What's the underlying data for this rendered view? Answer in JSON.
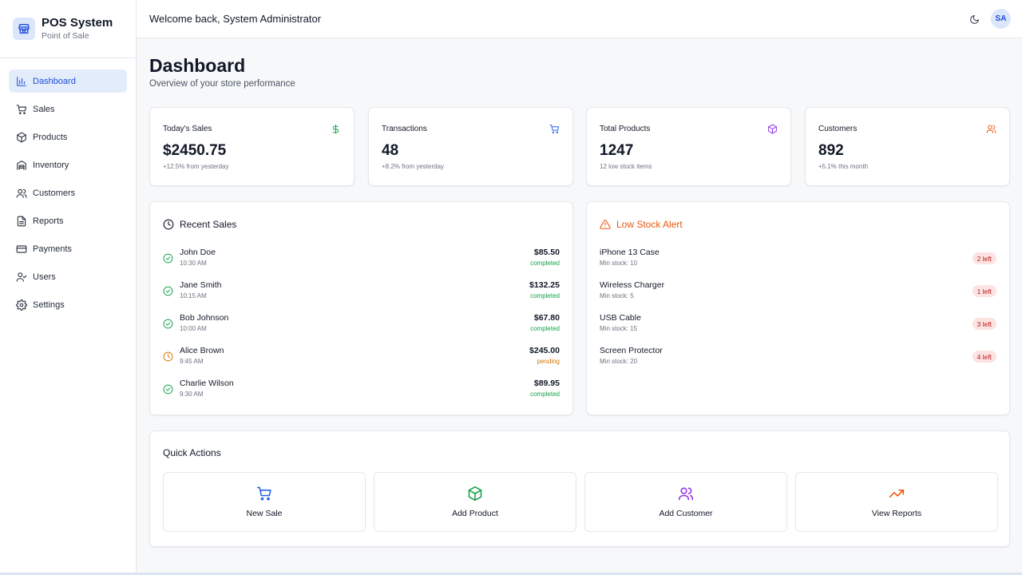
{
  "brand": {
    "title": "POS System",
    "subtitle": "Point of Sale"
  },
  "sidebar": {
    "items": [
      {
        "label": "Dashboard",
        "icon": "bar-chart-icon",
        "active": true
      },
      {
        "label": "Sales",
        "icon": "cart-icon"
      },
      {
        "label": "Products",
        "icon": "package-icon"
      },
      {
        "label": "Inventory",
        "icon": "warehouse-icon"
      },
      {
        "label": "Customers",
        "icon": "users-icon"
      },
      {
        "label": "Reports",
        "icon": "file-text-icon"
      },
      {
        "label": "Payments",
        "icon": "credit-card-icon"
      },
      {
        "label": "Users",
        "icon": "user-check-icon"
      },
      {
        "label": "Settings",
        "icon": "gear-icon"
      }
    ]
  },
  "header": {
    "welcome": "Welcome back, System Administrator",
    "avatar_initials": "SA"
  },
  "page": {
    "title": "Dashboard",
    "subtitle": "Overview of your store performance"
  },
  "stats": [
    {
      "label": "Today's Sales",
      "value": "$2450.75",
      "note": "+12.5% from yesterday",
      "icon": "dollar-icon",
      "color": "#16a34a"
    },
    {
      "label": "Transactions",
      "value": "48",
      "note": "+8.2% from yesterday",
      "icon": "cart-icon",
      "color": "#2563eb"
    },
    {
      "label": "Total Products",
      "value": "1247",
      "note": "12 low stock items",
      "icon": "package-icon",
      "color": "#9333ea"
    },
    {
      "label": "Customers",
      "value": "892",
      "note": "+5.1% this month",
      "icon": "users-icon",
      "color": "#ea580c"
    }
  ],
  "recent_sales": {
    "title": "Recent Sales",
    "rows": [
      {
        "name": "John Doe",
        "time": "10:30 AM",
        "amount": "$85.50",
        "status": "completed"
      },
      {
        "name": "Jane Smith",
        "time": "10:15 AM",
        "amount": "$132.25",
        "status": "completed"
      },
      {
        "name": "Bob Johnson",
        "time": "10:00 AM",
        "amount": "$67.80",
        "status": "completed"
      },
      {
        "name": "Alice Brown",
        "time": "9:45 AM",
        "amount": "$245.00",
        "status": "pending"
      },
      {
        "name": "Charlie Wilson",
        "time": "9:30 AM",
        "amount": "$89.95",
        "status": "completed"
      }
    ]
  },
  "low_stock": {
    "title": "Low Stock Alert",
    "rows": [
      {
        "name": "iPhone 13 Case",
        "min": "Min stock: 10",
        "badge": "2 left"
      },
      {
        "name": "Wireless Charger",
        "min": "Min stock: 5",
        "badge": "1 left"
      },
      {
        "name": "USB Cable",
        "min": "Min stock: 15",
        "badge": "3 left"
      },
      {
        "name": "Screen Protector",
        "min": "Min stock: 20",
        "badge": "4 left"
      }
    ]
  },
  "quick_actions": {
    "title": "Quick Actions",
    "items": [
      {
        "label": "New Sale",
        "icon": "cart-icon",
        "color": "#2563eb"
      },
      {
        "label": "Add Product",
        "icon": "package-icon",
        "color": "#16a34a"
      },
      {
        "label": "Add Customer",
        "icon": "users-icon",
        "color": "#9333ea"
      },
      {
        "label": "View Reports",
        "icon": "trending-up-icon",
        "color": "#ea580c"
      }
    ]
  },
  "colors": {
    "accent": "#1d4ed8",
    "completed": "#16a34a",
    "pending": "#d97706",
    "warning": "#ea580c"
  }
}
